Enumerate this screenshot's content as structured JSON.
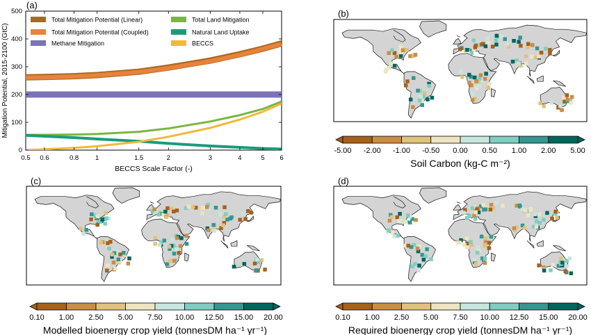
{
  "chart_data": [
    {
      "panel": "(a)",
      "type": "line",
      "xlabel": "BECCS Scale Factor (-)",
      "ylabel": "Mitigation Potential, 2015-2100 (GtC)",
      "xscale": "log",
      "xlim": [
        0.5,
        6
      ],
      "ylim": [
        0,
        500
      ],
      "x_ticks": [
        "0.5",
        "0.6",
        "0.8",
        "1",
        "1.5",
        "2",
        "3",
        "4",
        "5",
        "6"
      ],
      "y_ticks": [
        "0",
        "100",
        "200",
        "300",
        "400",
        "500"
      ],
      "legend_position": "top",
      "x": [
        0.5,
        0.6,
        0.8,
        1,
        1.5,
        2,
        3,
        4,
        5,
        6
      ],
      "series": [
        {
          "name": "Total Mitigation Potential (Linear)",
          "color": "#a86a1c",
          "values": [
            262,
            263,
            266,
            270,
            282,
            297,
            322,
            345,
            365,
            384
          ]
        },
        {
          "name": "Total Mitigation Potential (Coupled)",
          "color": "#e8823c",
          "values": [
            261,
            262,
            265,
            269,
            281,
            295,
            320,
            343,
            364,
            382
          ]
        },
        {
          "name": "Methane Mitigation",
          "color": "#7b72b7",
          "values": [
            200,
            200,
            200,
            200,
            200,
            200,
            200,
            200,
            200,
            200
          ]
        },
        {
          "name": "Total Land Mitigation",
          "color": "#7ab640",
          "values": [
            55,
            55,
            56,
            58,
            66,
            78,
            103,
            126,
            148,
            175
          ]
        },
        {
          "name": "Natural Land Uptake",
          "color": "#1a9c7b",
          "values": [
            53,
            50,
            45,
            40,
            32,
            24,
            15,
            10,
            6,
            4
          ]
        },
        {
          "name": "BECCS",
          "color": "#f0b93a",
          "values": [
            0,
            3,
            8,
            14,
            30,
            48,
            80,
            110,
            138,
            168
          ]
        }
      ]
    },
    {
      "panel": "(b)",
      "type": "heatmap",
      "colorbar_label": "Soil Carbon (kg-C m⁻²)",
      "colorbar_ticks": [
        "-5.00",
        "-2.00",
        "-1.00",
        "-0.50",
        "0.00",
        "0.50",
        "1.00",
        "2.00",
        "5.00"
      ]
    },
    {
      "panel": "(c)",
      "type": "heatmap",
      "colorbar_label": "Modelled bioenergy crop yield (tonnesDM ha⁻¹ yr⁻¹)",
      "colorbar_ticks": [
        "0.10",
        "1.00",
        "2.50",
        "5.00",
        "7.50",
        "10.00",
        "12.50",
        "15.00",
        "20.00"
      ]
    },
    {
      "panel": "(d)",
      "type": "heatmap",
      "colorbar_label": "Required bioenergy crop yield (tonnesDM ha⁻¹ yr⁻¹)",
      "colorbar_ticks": [
        "0.10",
        "1.00",
        "2.50",
        "5.00",
        "7.50",
        "10.00",
        "12.50",
        "15.00",
        "20.00"
      ]
    }
  ],
  "colors": {
    "diverging": [
      "#a6611a",
      "#c98d44",
      "#dfc27d",
      "#efe4c2",
      "#c7e6df",
      "#80cdc1",
      "#35978f",
      "#01665e"
    ],
    "sequential": [
      "#a6611a",
      "#c98d44",
      "#dfc27d",
      "#efe4c2",
      "#c7e6df",
      "#80cdc1",
      "#35978f",
      "#01665e"
    ],
    "land": "#d4d4d4",
    "coast": "#111111",
    "ocean": "#ffffff"
  }
}
